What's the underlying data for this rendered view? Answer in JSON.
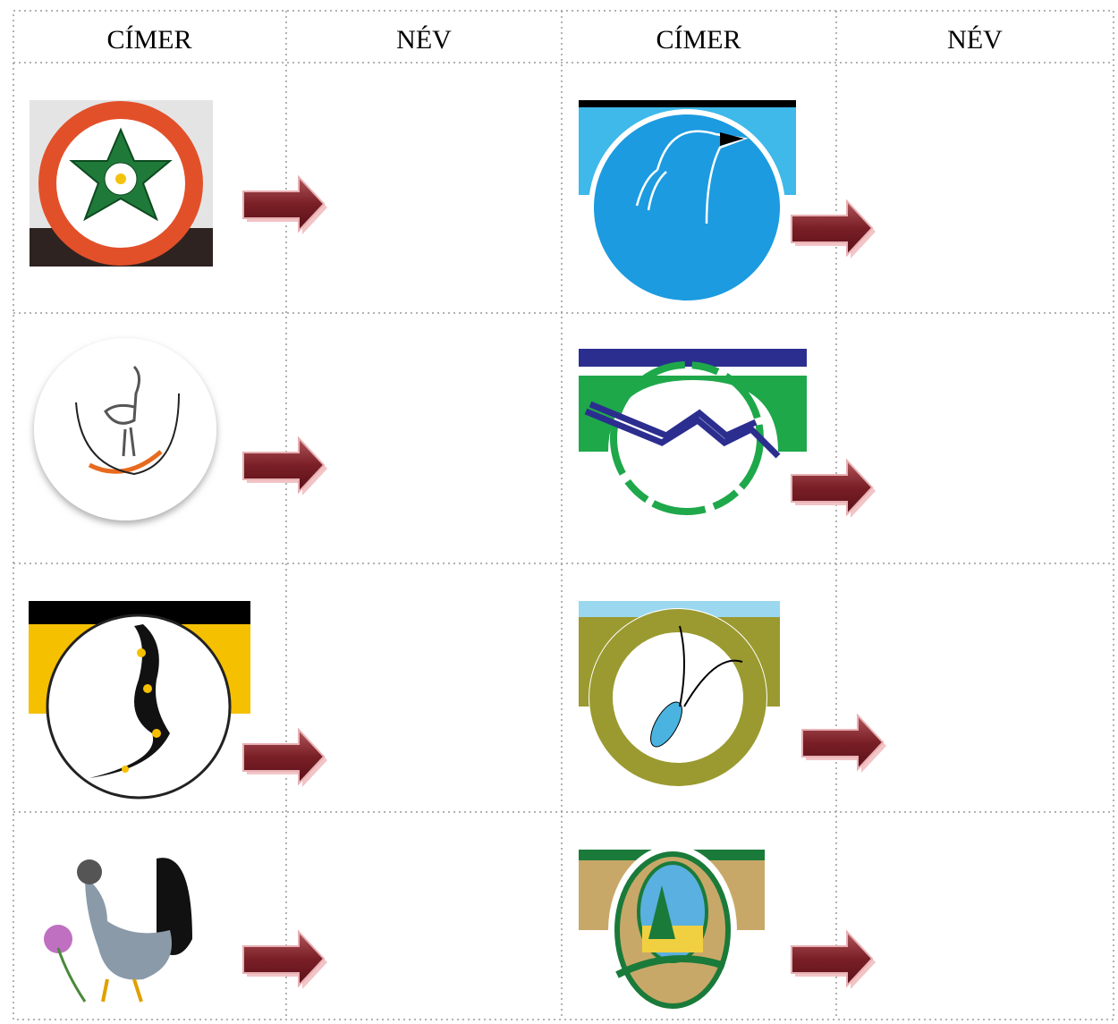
{
  "table": {
    "header": [
      "CÍMER",
      "NÉV",
      "CÍMER",
      "NÉV"
    ]
  }
}
